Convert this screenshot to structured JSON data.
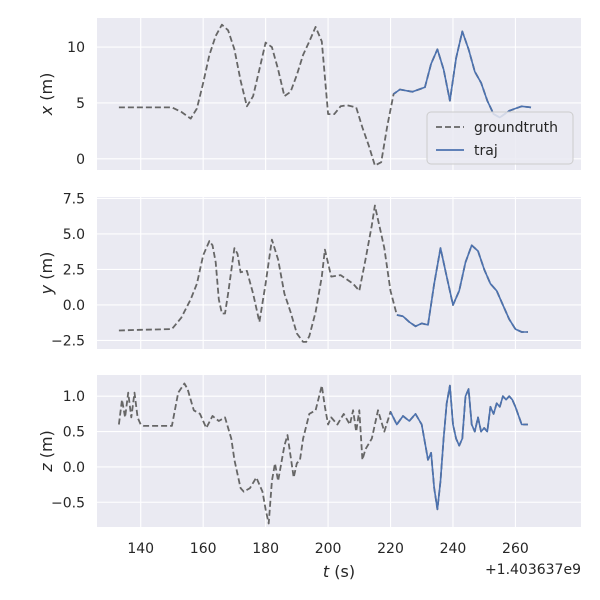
{
  "figure": {
    "background": "#ffffff",
    "panel_background": "#eaeaf2",
    "grid_color": "#ffffff",
    "colors": {
      "groundtruth": "#666666",
      "traj": "#4c72b0"
    }
  },
  "chart_data": [
    {
      "type": "line",
      "ylabel_var": "x",
      "ylabel_unit": " (m)",
      "ylim": [
        -1.0,
        12.6
      ],
      "yticks": [
        0,
        5,
        10
      ],
      "yticklabels": [
        "0",
        "5",
        "10"
      ],
      "xlim": [
        126,
        281
      ],
      "grid": true,
      "legend": {
        "position": "lower-right",
        "entries": [
          "groundtruth",
          "traj"
        ]
      },
      "series": [
        {
          "name": "groundtruth",
          "style": "dashed",
          "x": [
            133,
            140,
            150,
            153,
            156,
            158,
            160,
            162,
            164,
            166,
            168,
            170,
            172,
            174,
            176,
            178,
            180,
            182,
            184,
            186,
            188,
            190,
            192,
            194,
            196,
            198,
            200,
            202,
            204,
            206,
            209,
            211,
            213,
            215,
            217,
            219,
            221,
            223,
            227,
            231,
            233,
            235,
            237,
            239,
            241,
            243,
            245,
            247,
            249,
            251,
            253,
            255,
            258,
            262,
            265
          ],
          "y": [
            4.6,
            4.6,
            4.6,
            4.2,
            3.6,
            4.5,
            6.8,
            9.3,
            11.0,
            12.0,
            11.5,
            9.8,
            7.0,
            4.7,
            5.6,
            8.0,
            10.4,
            10.0,
            8.0,
            5.6,
            6.0,
            7.5,
            9.3,
            10.5,
            11.8,
            10.5,
            4.0,
            4.0,
            4.7,
            4.8,
            4.6,
            2.8,
            1.2,
            -0.6,
            -0.3,
            3.0,
            5.8,
            6.2,
            6.0,
            6.4,
            8.5,
            9.8,
            8.0,
            5.2,
            9.0,
            11.4,
            9.8,
            7.8,
            6.8,
            5.2,
            4.0,
            3.7,
            4.3,
            4.7,
            4.6
          ]
        },
        {
          "name": "traj",
          "style": "solid",
          "x": [
            221,
            223,
            227,
            231,
            233,
            235,
            237,
            239,
            241,
            243,
            245,
            247,
            249,
            251,
            253,
            255,
            258,
            262,
            265
          ],
          "y": [
            5.8,
            6.2,
            6.0,
            6.4,
            8.5,
            9.8,
            8.0,
            5.2,
            9.0,
            11.4,
            9.8,
            7.8,
            6.8,
            5.2,
            4.0,
            3.7,
            4.3,
            4.7,
            4.6
          ]
        }
      ]
    },
    {
      "type": "line",
      "ylabel_var": "y",
      "ylabel_unit": " (m)",
      "ylim": [
        -3.1,
        7.6
      ],
      "yticks": [
        -2.5,
        0,
        2.5,
        5,
        7.5
      ],
      "yticklabels": [
        "−2.5",
        "0.0",
        "2.5",
        "5.0",
        "7.5"
      ],
      "xlim": [
        126,
        281
      ],
      "grid": true,
      "series": [
        {
          "name": "groundtruth",
          "style": "dashed",
          "x": [
            133,
            140,
            150,
            153,
            156,
            158,
            160,
            162,
            163,
            164,
            165,
            166,
            167,
            168,
            170,
            171,
            172,
            174,
            176,
            178,
            180,
            182,
            184,
            186,
            188,
            190,
            192,
            193,
            194,
            196,
            198,
            199,
            201,
            204,
            206,
            208,
            210,
            212,
            214,
            215,
            216,
            217,
            218,
            220,
            222,
            224,
            226,
            228,
            230,
            232,
            234,
            236,
            238,
            240,
            242,
            244,
            246,
            248,
            250,
            252,
            254,
            256,
            258,
            260,
            262,
            264
          ],
          "y": [
            -1.8,
            -1.75,
            -1.7,
            -0.9,
            0.4,
            1.5,
            3.5,
            4.5,
            4.2,
            3.0,
            0.4,
            -0.6,
            -0.6,
            0.8,
            4.0,
            3.6,
            2.3,
            2.4,
            0.8,
            -1.2,
            1.5,
            4.6,
            3.2,
            0.8,
            -0.5,
            -2.0,
            -2.6,
            -2.6,
            -2.2,
            -0.5,
            2.0,
            3.9,
            2.0,
            2.1,
            1.8,
            1.5,
            1.0,
            3.2,
            5.6,
            7.0,
            6.0,
            5.0,
            4.0,
            1.0,
            -0.7,
            -0.8,
            -1.2,
            -1.5,
            -1.3,
            -1.4,
            1.5,
            4.0,
            2.0,
            0.0,
            1.0,
            3.0,
            4.2,
            3.8,
            2.5,
            1.5,
            1.0,
            0.0,
            -1.0,
            -1.7,
            -1.9,
            -1.9
          ]
        },
        {
          "name": "traj",
          "style": "solid",
          "x": [
            222,
            224,
            226,
            228,
            230,
            232,
            234,
            236,
            238,
            240,
            242,
            244,
            246,
            248,
            250,
            252,
            254,
            256,
            258,
            260,
            262,
            264
          ],
          "y": [
            -0.7,
            -0.8,
            -1.2,
            -1.5,
            -1.3,
            -1.4,
            1.5,
            4.0,
            2.0,
            0.0,
            1.0,
            3.0,
            4.2,
            3.8,
            2.5,
            1.5,
            1.0,
            0.0,
            -1.0,
            -1.7,
            -1.9,
            -1.9
          ]
        }
      ]
    },
    {
      "type": "line",
      "ylabel_var": "z",
      "ylabel_unit": " (m)",
      "ylim": [
        -0.85,
        1.3
      ],
      "yticks": [
        -0.5,
        0,
        0.5,
        1
      ],
      "yticklabels": [
        "−0.5",
        "0.0",
        "0.5",
        "1.0"
      ],
      "xlim": [
        126,
        281
      ],
      "xticks": [
        140,
        160,
        180,
        200,
        220,
        240,
        260
      ],
      "xticklabels": [
        "140",
        "160",
        "180",
        "200",
        "220",
        "240",
        "260"
      ],
      "xlabel_var": "t",
      "xlabel_unit": " (s)",
      "offset_text": "+1.403637e9",
      "grid": true,
      "series": [
        {
          "name": "groundtruth",
          "style": "dashed",
          "x": [
            133,
            134,
            135,
            136,
            137,
            138,
            139,
            140,
            141,
            145,
            150,
            152,
            154,
            155,
            157,
            159,
            161,
            163,
            165,
            167,
            169,
            170,
            171,
            172,
            173,
            175,
            177,
            179,
            180,
            181,
            182,
            183,
            184,
            186,
            187,
            189,
            190,
            191,
            192,
            194,
            196,
            198,
            199,
            200,
            201,
            203,
            205,
            207,
            208,
            209,
            210,
            211,
            212,
            214,
            216,
            218,
            220,
            222,
            224,
            226,
            228,
            230,
            232,
            233,
            234,
            235,
            236,
            237,
            238,
            239,
            240,
            241,
            242,
            243,
            244,
            245,
            246,
            247,
            248,
            249,
            250,
            251,
            252,
            253,
            254,
            255,
            256,
            257,
            258,
            259,
            260,
            262,
            264
          ],
          "y": [
            0.6,
            0.95,
            0.7,
            1.05,
            0.7,
            1.05,
            0.7,
            0.6,
            0.58,
            0.58,
            0.58,
            1.05,
            1.18,
            1.1,
            0.8,
            0.75,
            0.55,
            0.72,
            0.65,
            0.7,
            0.4,
            0.1,
            -0.1,
            -0.3,
            -0.35,
            -0.3,
            -0.15,
            -0.35,
            -0.6,
            -0.8,
            -0.2,
            0.05,
            -0.2,
            0.3,
            0.45,
            -0.15,
            0.05,
            0.1,
            0.4,
            0.75,
            0.8,
            1.15,
            0.85,
            0.6,
            0.7,
            0.6,
            0.75,
            0.6,
            0.8,
            0.5,
            0.8,
            0.1,
            0.25,
            0.4,
            0.8,
            0.5,
            0.78,
            0.6,
            0.72,
            0.65,
            0.75,
            0.6,
            0.1,
            0.2,
            -0.3,
            -0.6,
            -0.2,
            0.4,
            0.9,
            1.15,
            0.6,
            0.4,
            0.3,
            0.4,
            1.0,
            1.1,
            0.6,
            0.5,
            0.7,
            0.5,
            0.55,
            0.5,
            0.85,
            0.75,
            0.9,
            0.85,
            1.0,
            0.95,
            1.0,
            0.95,
            0.85,
            0.6,
            0.6
          ]
        },
        {
          "name": "traj",
          "style": "solid",
          "x": [
            220,
            222,
            224,
            226,
            228,
            230,
            232,
            233,
            234,
            235,
            236,
            237,
            238,
            239,
            240,
            241,
            242,
            243,
            244,
            245,
            246,
            247,
            248,
            249,
            250,
            251,
            252,
            253,
            254,
            255,
            256,
            257,
            258,
            259,
            260,
            262,
            264
          ],
          "y": [
            0.78,
            0.6,
            0.72,
            0.65,
            0.75,
            0.6,
            0.1,
            0.2,
            -0.3,
            -0.6,
            -0.2,
            0.4,
            0.9,
            1.15,
            0.6,
            0.4,
            0.3,
            0.4,
            1.0,
            1.1,
            0.6,
            0.5,
            0.7,
            0.5,
            0.55,
            0.5,
            0.85,
            0.75,
            0.9,
            0.85,
            1.0,
            0.95,
            1.0,
            0.95,
            0.85,
            0.6,
            0.6
          ]
        }
      ]
    }
  ]
}
